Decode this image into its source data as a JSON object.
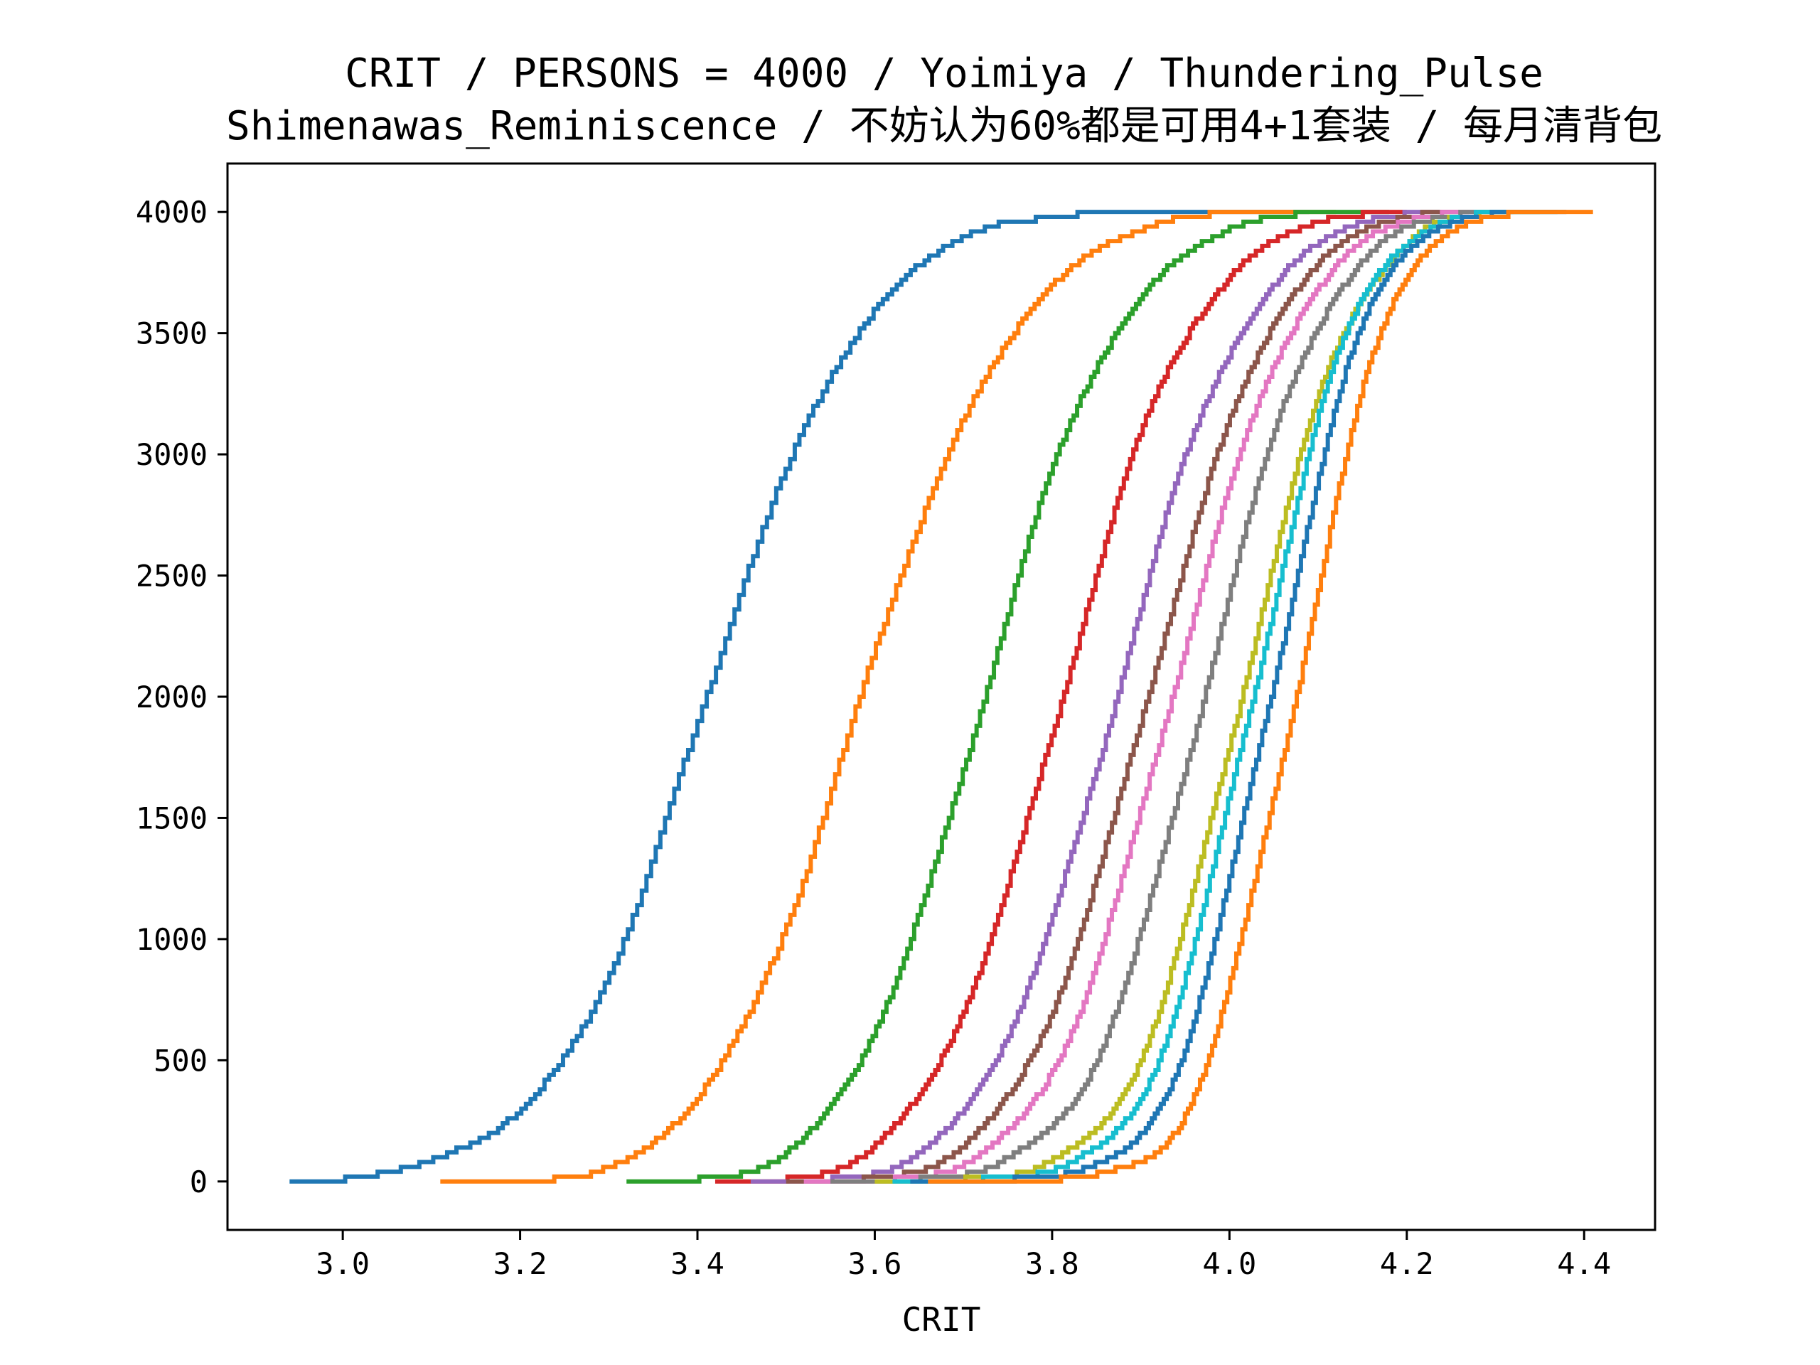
{
  "chart_data": {
    "type": "line",
    "title_line1": "CRIT / PERSONS = 4000 / Yoimiya / Thundering_Pulse",
    "title_line2": "Shimenawas_Reminiscence / 不妨认为60%都是可用4+1套装 / 每月清背包",
    "xlabel": "CRIT",
    "ylabel": "",
    "xlim": [
      2.87,
      4.48
    ],
    "ylim": [
      -200,
      4200
    ],
    "xticks": [
      3.0,
      3.2,
      3.4,
      3.6,
      3.8,
      4.0,
      4.2,
      4.4
    ],
    "xtick_labels": [
      "3.0",
      "3.2",
      "3.4",
      "3.6",
      "3.8",
      "4.0",
      "4.2",
      "4.4"
    ],
    "yticks": [
      0,
      500,
      1000,
      1500,
      2000,
      2500,
      3000,
      3500,
      4000
    ],
    "ytick_labels": [
      "0",
      "500",
      "1000",
      "1500",
      "2000",
      "2500",
      "3000",
      "3500",
      "4000"
    ],
    "grid": false,
    "legend": "none",
    "step_count": 4000,
    "series": [
      {
        "color": "#1f77b4",
        "values": [
          [
            2.94,
            0
          ],
          [
            3.0,
            10
          ],
          [
            3.1,
            90
          ],
          [
            3.2,
            300
          ],
          [
            3.3,
            850
          ],
          [
            3.4,
            1900
          ],
          [
            3.5,
            2950
          ],
          [
            3.6,
            3600
          ],
          [
            3.7,
            3900
          ],
          [
            3.8,
            3980
          ],
          [
            3.9,
            4000
          ],
          [
            4.09,
            4000
          ]
        ]
      },
      {
        "color": "#ff7f0e",
        "values": [
          [
            3.11,
            0
          ],
          [
            3.2,
            5
          ],
          [
            3.3,
            60
          ],
          [
            3.4,
            350
          ],
          [
            3.5,
            1050
          ],
          [
            3.6,
            2200
          ],
          [
            3.7,
            3150
          ],
          [
            3.8,
            3700
          ],
          [
            3.9,
            3930
          ],
          [
            4.0,
            3995
          ],
          [
            4.12,
            4000
          ]
        ]
      },
      {
        "color": "#2ca02c",
        "values": [
          [
            3.32,
            0
          ],
          [
            3.4,
            10
          ],
          [
            3.5,
            120
          ],
          [
            3.6,
            620
          ],
          [
            3.7,
            1700
          ],
          [
            3.8,
            2950
          ],
          [
            3.9,
            3650
          ],
          [
            4.0,
            3930
          ],
          [
            4.1,
            3995
          ],
          [
            4.18,
            4000
          ]
        ]
      },
      {
        "color": "#d62728",
        "values": [
          [
            3.42,
            0
          ],
          [
            3.5,
            10
          ],
          [
            3.6,
            150
          ],
          [
            3.7,
            700
          ],
          [
            3.8,
            1850
          ],
          [
            3.9,
            3100
          ],
          [
            4.0,
            3730
          ],
          [
            4.1,
            3960
          ],
          [
            4.2,
            4000
          ]
        ]
      },
      {
        "color": "#9467bd",
        "values": [
          [
            3.46,
            0
          ],
          [
            3.55,
            10
          ],
          [
            3.65,
            120
          ],
          [
            3.75,
            600
          ],
          [
            3.85,
            1700
          ],
          [
            3.95,
            3000
          ],
          [
            4.05,
            3700
          ],
          [
            4.15,
            3960
          ],
          [
            4.24,
            4000
          ]
        ]
      },
      {
        "color": "#8c564b",
        "values": [
          [
            3.5,
            0
          ],
          [
            3.6,
            15
          ],
          [
            3.7,
            150
          ],
          [
            3.8,
            700
          ],
          [
            3.9,
            1900
          ],
          [
            4.0,
            3150
          ],
          [
            4.1,
            3790
          ],
          [
            4.2,
            3980
          ],
          [
            4.27,
            4000
          ]
        ]
      },
      {
        "color": "#e377c2",
        "values": [
          [
            3.52,
            0
          ],
          [
            3.62,
            10
          ],
          [
            3.72,
            120
          ],
          [
            3.82,
            600
          ],
          [
            3.92,
            1800
          ],
          [
            4.02,
            3100
          ],
          [
            4.12,
            3780
          ],
          [
            4.22,
            3980
          ],
          [
            4.3,
            4000
          ]
        ]
      },
      {
        "color": "#7f7f7f",
        "values": [
          [
            3.55,
            0
          ],
          [
            3.65,
            10
          ],
          [
            3.75,
            100
          ],
          [
            3.85,
            500
          ],
          [
            3.95,
            1700
          ],
          [
            4.05,
            3100
          ],
          [
            4.15,
            3800
          ],
          [
            4.25,
            3985
          ],
          [
            4.32,
            4000
          ]
        ]
      },
      {
        "color": "#bcbd22",
        "values": [
          [
            3.6,
            0
          ],
          [
            3.7,
            10
          ],
          [
            3.8,
            90
          ],
          [
            3.9,
            500
          ],
          [
            4.0,
            1800
          ],
          [
            4.1,
            3250
          ],
          [
            4.2,
            3870
          ],
          [
            4.3,
            3995
          ],
          [
            4.35,
            4000
          ]
        ]
      },
      {
        "color": "#17becf",
        "values": [
          [
            3.62,
            0
          ],
          [
            3.72,
            10
          ],
          [
            3.82,
            80
          ],
          [
            3.92,
            500
          ],
          [
            4.02,
            1900
          ],
          [
            4.12,
            3400
          ],
          [
            4.22,
            3920
          ],
          [
            4.32,
            3998
          ],
          [
            4.37,
            4000
          ]
        ]
      },
      {
        "color": "#1f77b4",
        "values": [
          [
            3.64,
            0
          ],
          [
            3.74,
            8
          ],
          [
            3.84,
            60
          ],
          [
            3.94,
            450
          ],
          [
            4.04,
            1900
          ],
          [
            4.14,
            3450
          ],
          [
            4.24,
            3940
          ],
          [
            4.34,
            3998
          ],
          [
            4.38,
            4000
          ]
        ]
      },
      {
        "color": "#ff7f0e",
        "values": [
          [
            3.66,
            0
          ],
          [
            3.76,
            5
          ],
          [
            3.86,
            40
          ],
          [
            3.96,
            350
          ],
          [
            4.06,
            1750
          ],
          [
            4.16,
            3400
          ],
          [
            4.26,
            3940
          ],
          [
            4.36,
            3998
          ],
          [
            4.41,
            4000
          ]
        ]
      }
    ]
  }
}
